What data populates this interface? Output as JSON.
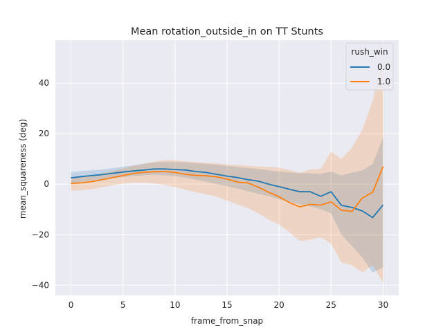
{
  "chart_data": {
    "type": "line",
    "title": "Mean rotation_outside_in on TT Stunts",
    "xlabel": "frame_from_snap",
    "ylabel": "mean_squareness (deg)",
    "xlim": [
      -1.5,
      31.5
    ],
    "ylim": [
      -44,
      57
    ],
    "xticks": [
      0,
      5,
      10,
      15,
      20,
      25,
      30
    ],
    "yticks": [
      -40,
      -20,
      0,
      20,
      40
    ],
    "grid": true,
    "legend": {
      "title": "rush_win",
      "placement": "top-right"
    },
    "x": [
      0,
      1,
      2,
      3,
      4,
      5,
      6,
      7,
      8,
      9,
      10,
      11,
      12,
      13,
      14,
      15,
      16,
      17,
      18,
      19,
      20,
      21,
      22,
      23,
      24,
      25,
      26,
      27,
      28,
      29,
      30
    ],
    "series": [
      {
        "name": "0.0",
        "color": "#1f77b4",
        "values": [
          2.5,
          3.0,
          3.4,
          3.8,
          4.3,
          4.8,
          5.2,
          5.6,
          6.0,
          6.0,
          5.8,
          5.6,
          5.0,
          4.6,
          3.9,
          3.2,
          2.6,
          1.8,
          1.2,
          0.0,
          -1.0,
          -2.0,
          -3.0,
          -3.0,
          -4.8,
          -3.0,
          -8.4,
          -9.2,
          -10.6,
          -13.2,
          -8.2
        ],
        "ci_upper": [
          4.8,
          5.2,
          5.5,
          5.8,
          6.3,
          6.9,
          7.4,
          8.1,
          8.6,
          8.8,
          8.8,
          8.6,
          8.3,
          8.0,
          7.7,
          7.2,
          6.8,
          6.4,
          6.0,
          5.5,
          5.0,
          4.6,
          4.3,
          4.3,
          4.0,
          5.0,
          3.5,
          4.5,
          5.5,
          8.0,
          18.5
        ],
        "ci_lower": [
          0.3,
          0.8,
          1.3,
          1.8,
          2.3,
          2.8,
          3.2,
          3.5,
          3.7,
          3.5,
          3.2,
          2.6,
          1.8,
          1.0,
          0.0,
          -0.8,
          -1.7,
          -2.8,
          -3.8,
          -4.8,
          -6.0,
          -7.0,
          -8.0,
          -8.8,
          -10.0,
          -11.5,
          -20.0,
          -24.5,
          -29.0,
          -35.0,
          -33.0
        ]
      },
      {
        "name": "1.0",
        "color": "#ff7f0e",
        "values": [
          0.3,
          0.5,
          1.0,
          1.8,
          2.6,
          3.4,
          4.2,
          4.7,
          4.9,
          5.0,
          4.6,
          3.9,
          3.5,
          3.3,
          2.9,
          2.0,
          0.8,
          0.5,
          -1.2,
          -3.2,
          -5.0,
          -7.3,
          -9.0,
          -8.0,
          -8.3,
          -7.0,
          -10.3,
          -10.8,
          -5.5,
          -3.2,
          7.0
        ],
        "ci_upper": [
          2.8,
          3.0,
          3.5,
          4.2,
          5.2,
          6.2,
          7.2,
          8.1,
          8.9,
          9.5,
          9.5,
          9.0,
          8.8,
          8.4,
          8.2,
          7.8,
          7.5,
          7.3,
          7.0,
          6.8,
          6.5,
          5.6,
          4.5,
          5.8,
          6.0,
          12.8,
          10.0,
          14.5,
          21.5,
          33.0,
          52.0
        ],
        "ci_lower": [
          -2.6,
          -2.4,
          -2.0,
          -1.2,
          -0.4,
          0.2,
          0.5,
          0.6,
          0.3,
          -0.3,
          -1.2,
          -2.2,
          -3.2,
          -4.0,
          -5.0,
          -6.5,
          -8.0,
          -9.5,
          -11.5,
          -14.0,
          -16.0,
          -19.0,
          -22.5,
          -22.0,
          -21.0,
          -23.5,
          -31.0,
          -32.0,
          -35.0,
          -32.0,
          -39.0
        ]
      }
    ]
  }
}
